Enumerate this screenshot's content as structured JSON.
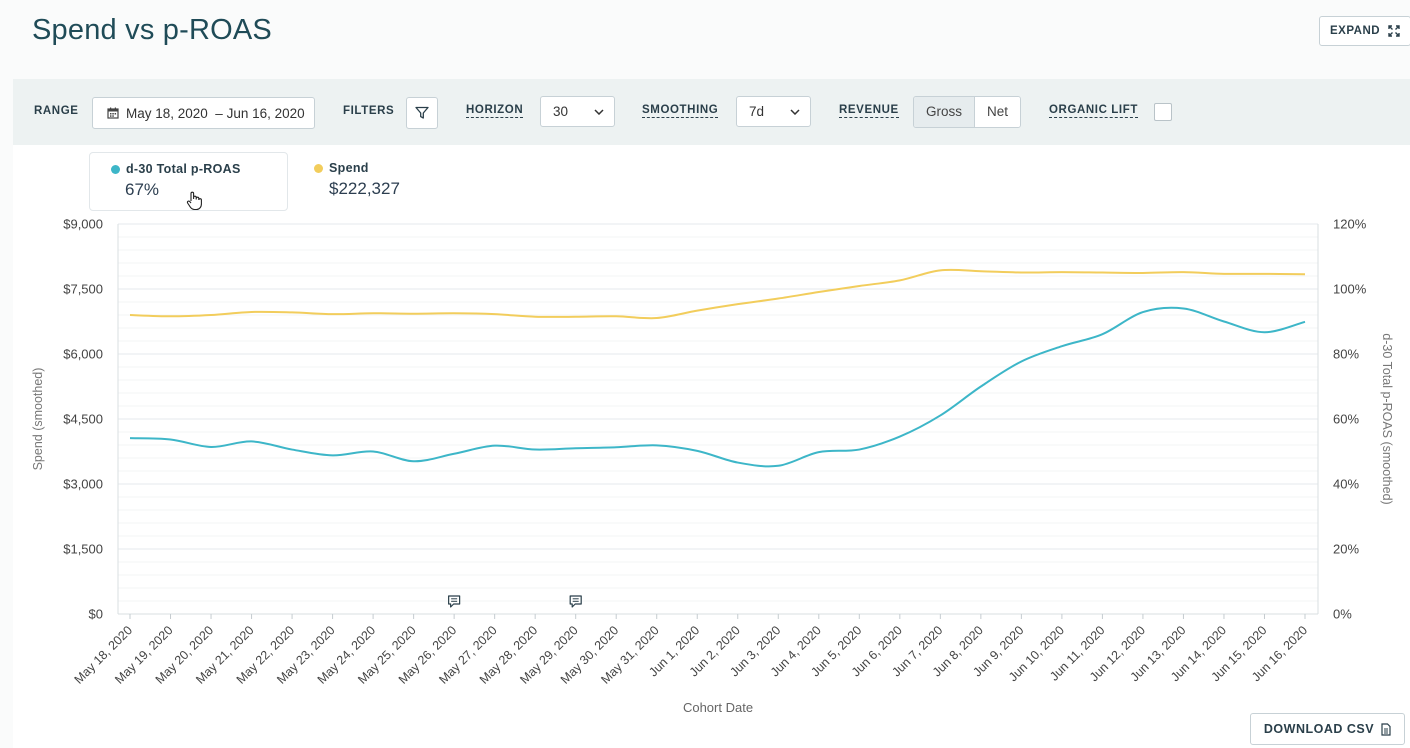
{
  "header": {
    "title": "Spend vs p-ROAS",
    "expand_label": "EXPAND"
  },
  "toolbar": {
    "range_label": "RANGE",
    "range_value": "May 18, 2020  – Jun 16, 2020",
    "filters_label": "FILTERS",
    "horizon_label": "HORIZON",
    "horizon_value": "30",
    "smoothing_label": "SMOOTHING",
    "smoothing_value": "7d",
    "revenue_label": "REVENUE",
    "revenue_options": [
      "Gross",
      "Net"
    ],
    "revenue_selected": "Gross",
    "organic_lift_label": "ORGANIC LIFT"
  },
  "legend": [
    {
      "name": "d-30 Total p-ROAS",
      "value": "67%",
      "color": "#3db6c8"
    },
    {
      "name": "Spend",
      "value": "$222,327",
      "color": "#f2cd5c"
    }
  ],
  "download_label": "DOWNLOAD CSV",
  "chart_data": {
    "type": "line",
    "title": "Spend vs p-ROAS",
    "xlabel": "Cohort Date",
    "ylabel_left": "Spend (smoothed)",
    "ylabel_right": "d-30 Total p-ROAS (smoothed)",
    "ylim_left": [
      0,
      9000
    ],
    "ylim_right": [
      0,
      120
    ],
    "yticks_left": [
      "$0",
      "$1,500",
      "$3,000",
      "$4,500",
      "$6,000",
      "$7,500",
      "$9,000"
    ],
    "yticks_right": [
      "0%",
      "20%",
      "40%",
      "60%",
      "80%",
      "100%",
      "120%"
    ],
    "categories": [
      "May 18, 2020",
      "May 19, 2020",
      "May 20, 2020",
      "May 21, 2020",
      "May 22, 2020",
      "May 23, 2020",
      "May 24, 2020",
      "May 25, 2020",
      "May 26, 2020",
      "May 27, 2020",
      "May 28, 2020",
      "May 29, 2020",
      "May 30, 2020",
      "May 31, 2020",
      "Jun 1, 2020",
      "Jun 2, 2020",
      "Jun 3, 2020",
      "Jun 4, 2020",
      "Jun 5, 2020",
      "Jun 6, 2020",
      "Jun 7, 2020",
      "Jun 8, 2020",
      "Jun 9, 2020",
      "Jun 10, 2020",
      "Jun 11, 2020",
      "Jun 12, 2020",
      "Jun 13, 2020",
      "Jun 14, 2020",
      "Jun 15, 2020",
      "Jun 16, 2020"
    ],
    "series": [
      {
        "name": "Spend",
        "axis": "left",
        "color": "#f2cd5c",
        "values": [
          6900,
          6870,
          6900,
          6970,
          6960,
          6920,
          6940,
          6930,
          6940,
          6920,
          6860,
          6860,
          6870,
          6830,
          7000,
          7150,
          7280,
          7430,
          7570,
          7700,
          7930,
          7910,
          7880,
          7890,
          7880,
          7870,
          7890,
          7850,
          7850,
          7840
        ]
      },
      {
        "name": "d-30 Total p-ROAS",
        "axis": "right",
        "color": "#3db6c8",
        "values": [
          54.1,
          53.7,
          51.4,
          53.1,
          50.6,
          48.8,
          50.0,
          47.0,
          49.3,
          51.8,
          50.6,
          51.0,
          51.3,
          51.9,
          50.2,
          46.6,
          45.6,
          49.8,
          50.6,
          54.6,
          61.1,
          70.0,
          77.7,
          82.4,
          86.1,
          92.9,
          94.0,
          90.0,
          86.7,
          89.9
        ]
      }
    ],
    "annotations": [
      {
        "type": "comment-marker",
        "category": "May 26, 2020"
      },
      {
        "type": "comment-marker",
        "category": "May 29, 2020"
      }
    ]
  }
}
